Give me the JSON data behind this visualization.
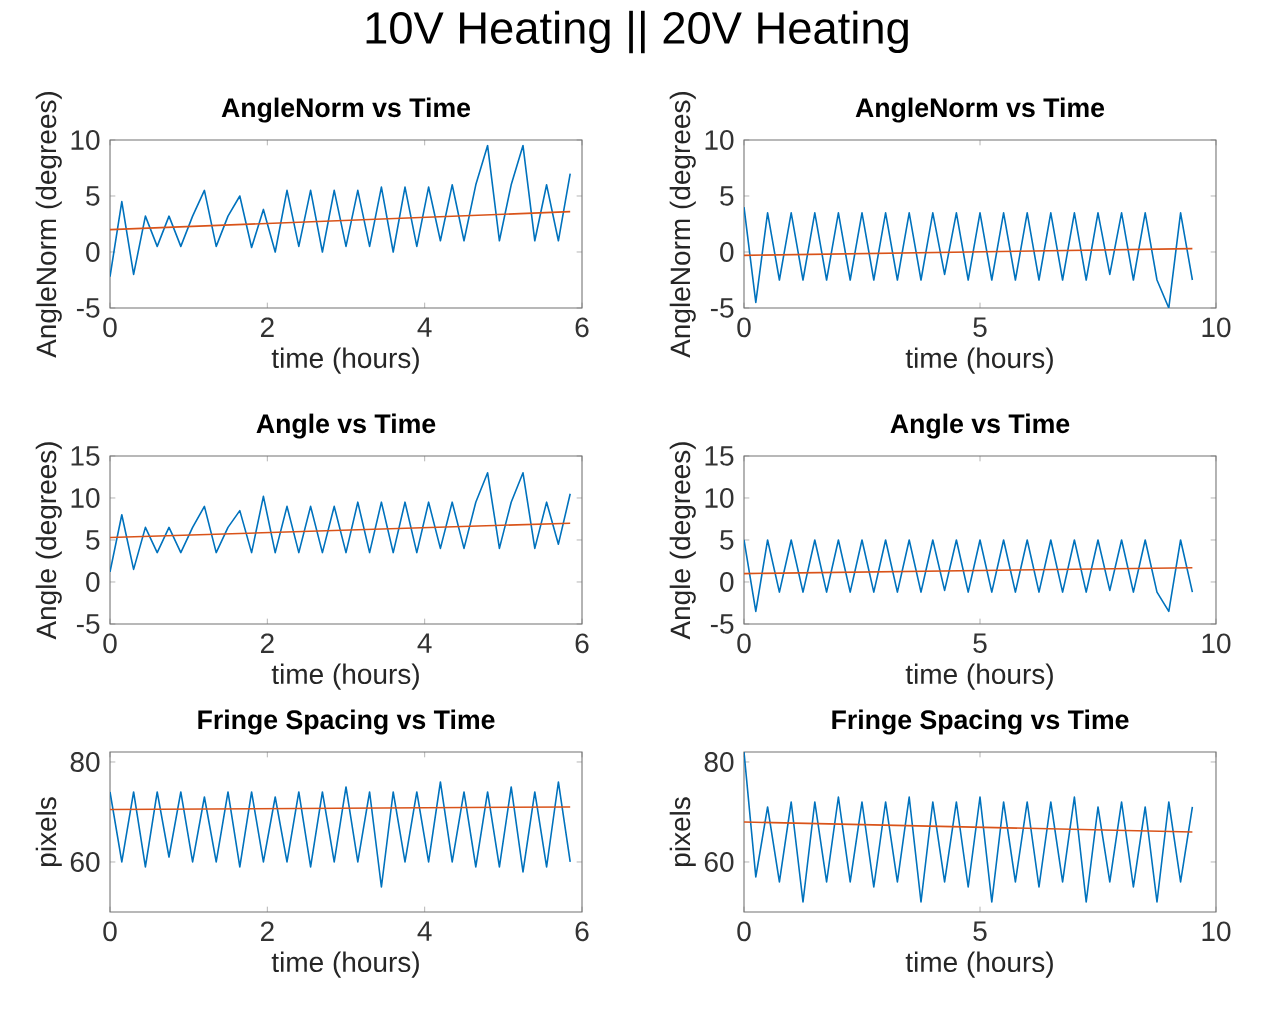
{
  "chart_data": [
    {
      "type": "other",
      "title": "10V Heating   ||   20V Heating"
    },
    {
      "type": "line",
      "title": "AngleNorm vs Time",
      "xlabel": "time (hours)",
      "ylabel": "AngleNorm (degrees)",
      "xlim": [
        0,
        6
      ],
      "xticks": [
        0,
        2,
        4,
        6
      ],
      "ylim": [
        -5,
        10
      ],
      "yticks": [
        -5,
        0,
        5,
        10
      ],
      "x": [
        0,
        0.15,
        0.3,
        0.45,
        0.6,
        0.75,
        0.9,
        1.05,
        1.2,
        1.35,
        1.5,
        1.65,
        1.8,
        1.95,
        2.1,
        2.25,
        2.4,
        2.55,
        2.7,
        2.85,
        3.0,
        3.15,
        3.3,
        3.45,
        3.6,
        3.75,
        3.9,
        4.05,
        4.2,
        4.35,
        4.5,
        4.65,
        4.8,
        4.95,
        5.1,
        5.25,
        5.4,
        5.55,
        5.7,
        5.85
      ],
      "series": [
        {
          "color": "#0072bd",
          "values": [
            -2.2,
            4.5,
            -2,
            3.2,
            0.5,
            3.2,
            0.5,
            3.2,
            5.5,
            0.5,
            3.2,
            5,
            0.4,
            3.8,
            0,
            5.5,
            0.5,
            5.5,
            0,
            5.5,
            0.5,
            5.5,
            0.5,
            5.8,
            0,
            5.8,
            0.5,
            5.8,
            1,
            6,
            1,
            6,
            9.5,
            1,
            6,
            9.5,
            1,
            6,
            1,
            7
          ]
        },
        {
          "color": "#d95319",
          "x": [
            0,
            5.85
          ],
          "values": [
            2.0,
            3.6
          ]
        }
      ]
    },
    {
      "type": "line",
      "title": "AngleNorm vs Time",
      "xlabel": "time (hours)",
      "ylabel": "AngleNorm (degrees)",
      "xlim": [
        0,
        10
      ],
      "xticks": [
        0,
        5,
        10
      ],
      "ylim": [
        -5,
        10
      ],
      "yticks": [
        -5,
        0,
        5,
        10
      ],
      "x": [
        0,
        0.25,
        0.5,
        0.75,
        1,
        1.25,
        1.5,
        1.75,
        2,
        2.25,
        2.5,
        2.75,
        3,
        3.25,
        3.5,
        3.75,
        4,
        4.25,
        4.5,
        4.75,
        5,
        5.25,
        5.5,
        5.75,
        6,
        6.25,
        6.5,
        6.75,
        7,
        7.25,
        7.5,
        7.75,
        8,
        8.25,
        8.5,
        8.75,
        9,
        9.25,
        9.5
      ],
      "series": [
        {
          "color": "#0072bd",
          "values": [
            4,
            -4.5,
            3.5,
            -2.5,
            3.5,
            -2.5,
            3.5,
            -2.5,
            3.5,
            -2.5,
            3.5,
            -2.5,
            3.5,
            -2.5,
            3.5,
            -2.5,
            3.5,
            -2,
            3.5,
            -2.5,
            3.5,
            -2.5,
            3.5,
            -2.5,
            3.5,
            -2.5,
            3.5,
            -2.5,
            3.5,
            -2.5,
            3.5,
            -2,
            3.5,
            -2.5,
            3.5,
            -2.5,
            -5,
            3.5,
            -2.5
          ]
        },
        {
          "color": "#d95319",
          "x": [
            0,
            9.5
          ],
          "values": [
            -0.3,
            0.3
          ]
        }
      ]
    },
    {
      "type": "line",
      "title": "Angle vs Time",
      "xlabel": "time (hours)",
      "ylabel": "Angle (degrees)",
      "xlim": [
        0,
        6
      ],
      "xticks": [
        0,
        2,
        4,
        6
      ],
      "ylim": [
        -5,
        15
      ],
      "yticks": [
        -5,
        0,
        5,
        10,
        15
      ],
      "x": [
        0,
        0.15,
        0.3,
        0.45,
        0.6,
        0.75,
        0.9,
        1.05,
        1.2,
        1.35,
        1.5,
        1.65,
        1.8,
        1.95,
        2.1,
        2.25,
        2.4,
        2.55,
        2.7,
        2.85,
        3.0,
        3.15,
        3.3,
        3.45,
        3.6,
        3.75,
        3.9,
        4.05,
        4.2,
        4.35,
        4.5,
        4.65,
        4.8,
        4.95,
        5.1,
        5.25,
        5.4,
        5.55,
        5.7,
        5.85
      ],
      "series": [
        {
          "color": "#0072bd",
          "values": [
            1.2,
            8,
            1.5,
            6.5,
            3.5,
            6.5,
            3.5,
            6.5,
            9,
            3.5,
            6.5,
            8.5,
            3.5,
            10.2,
            3.5,
            9,
            3.5,
            9,
            3.5,
            9,
            3.5,
            9.5,
            3.5,
            9.5,
            3.5,
            9.5,
            3.5,
            9.5,
            4,
            9.5,
            4,
            9.5,
            13,
            4,
            9.5,
            13,
            4,
            9.5,
            4.5,
            10.5
          ]
        },
        {
          "color": "#d95319",
          "x": [
            0,
            5.85
          ],
          "values": [
            5.3,
            7.0
          ]
        }
      ]
    },
    {
      "type": "line",
      "title": "Angle vs Time",
      "xlabel": "time (hours)",
      "ylabel": "Angle (degrees)",
      "xlim": [
        0,
        10
      ],
      "xticks": [
        0,
        5,
        10
      ],
      "ylim": [
        -5,
        15
      ],
      "yticks": [
        -5,
        0,
        5,
        10,
        15
      ],
      "x": [
        0,
        0.25,
        0.5,
        0.75,
        1,
        1.25,
        1.5,
        1.75,
        2,
        2.25,
        2.5,
        2.75,
        3,
        3.25,
        3.5,
        3.75,
        4,
        4.25,
        4.5,
        4.75,
        5,
        5.25,
        5.5,
        5.75,
        6,
        6.25,
        6.5,
        6.75,
        7,
        7.25,
        7.5,
        7.75,
        8,
        8.25,
        8.5,
        8.75,
        9,
        9.25,
        9.5
      ],
      "series": [
        {
          "color": "#0072bd",
          "values": [
            5,
            -3.5,
            5,
            -1.2,
            5,
            -1.2,
            5,
            -1.2,
            5,
            -1.2,
            5,
            -1.2,
            5,
            -1.2,
            5,
            -1.2,
            5,
            -1,
            5,
            -1.2,
            5,
            -1.2,
            5,
            -1.2,
            5,
            -1.2,
            5,
            -1.2,
            5,
            -1.2,
            5,
            -1,
            5,
            -1.2,
            5,
            -1.2,
            -3.5,
            5,
            -1.2
          ]
        },
        {
          "color": "#d95319",
          "x": [
            0,
            9.5
          ],
          "values": [
            1.0,
            1.7
          ]
        }
      ]
    },
    {
      "type": "line",
      "title": "Fringe Spacing vs Time",
      "xlabel": "time (hours)",
      "ylabel": "pixels",
      "xlim": [
        0,
        6
      ],
      "xticks": [
        0,
        2,
        4,
        6
      ],
      "ylim": [
        50,
        82
      ],
      "yticks": [
        60,
        80
      ],
      "x": [
        0,
        0.15,
        0.3,
        0.45,
        0.6,
        0.75,
        0.9,
        1.05,
        1.2,
        1.35,
        1.5,
        1.65,
        1.8,
        1.95,
        2.1,
        2.25,
        2.4,
        2.55,
        2.7,
        2.85,
        3.0,
        3.15,
        3.3,
        3.45,
        3.6,
        3.75,
        3.9,
        4.05,
        4.2,
        4.35,
        4.5,
        4.65,
        4.8,
        4.95,
        5.1,
        5.25,
        5.4,
        5.55,
        5.7,
        5.85
      ],
      "series": [
        {
          "color": "#0072bd",
          "values": [
            74,
            60,
            74,
            59,
            74,
            61,
            74,
            60,
            73,
            60,
            74,
            59,
            74,
            60,
            73,
            60,
            74,
            59,
            74,
            60,
            75,
            60,
            74,
            55,
            74,
            60,
            74,
            60,
            76,
            60,
            74,
            59,
            74,
            59,
            75,
            58,
            74,
            59,
            76,
            60
          ]
        },
        {
          "color": "#d95319",
          "x": [
            0,
            5.85
          ],
          "values": [
            70.5,
            71
          ]
        }
      ]
    },
    {
      "type": "line",
      "title": "Fringe Spacing vs Time",
      "xlabel": "time (hours)",
      "ylabel": "pixels",
      "xlim": [
        0,
        10
      ],
      "xticks": [
        0,
        5,
        10
      ],
      "ylim": [
        50,
        82
      ],
      "yticks": [
        60,
        80
      ],
      "x": [
        0,
        0.25,
        0.5,
        0.75,
        1,
        1.25,
        1.5,
        1.75,
        2,
        2.25,
        2.5,
        2.75,
        3,
        3.25,
        3.5,
        3.75,
        4,
        4.25,
        4.5,
        4.75,
        5,
        5.25,
        5.5,
        5.75,
        6,
        6.25,
        6.5,
        6.75,
        7,
        7.25,
        7.5,
        7.75,
        8,
        8.25,
        8.5,
        8.75,
        9,
        9.25,
        9.5
      ],
      "series": [
        {
          "color": "#0072bd",
          "values": [
            82,
            57,
            71,
            56,
            72,
            52,
            72,
            56,
            73,
            56,
            72,
            55,
            72,
            56,
            73,
            52,
            72,
            56,
            72,
            55,
            73,
            52,
            72,
            56,
            72,
            55,
            72,
            56,
            73,
            52,
            71,
            56,
            72,
            55,
            71,
            52,
            72,
            56,
            71
          ]
        },
        {
          "color": "#d95319",
          "x": [
            0,
            9.5
          ],
          "values": [
            68,
            66
          ]
        }
      ]
    }
  ]
}
